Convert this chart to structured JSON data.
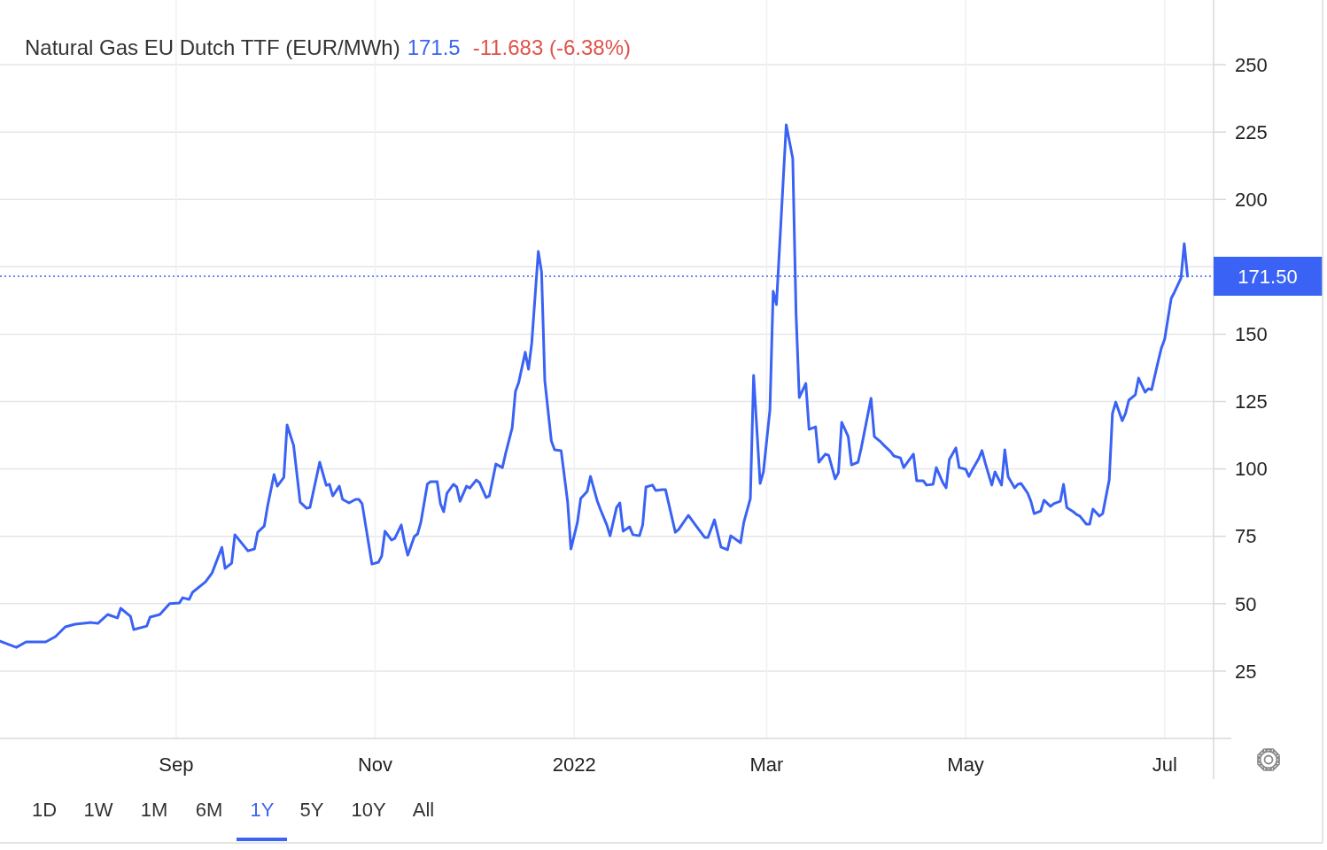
{
  "chart_data": {
    "type": "line",
    "title": "Natural Gas EU Dutch TTF (EUR/MWh)",
    "annotations": [
      "171.5",
      "-11.683 (-6.38%)",
      "1D",
      "1W",
      "1M",
      "6M",
      "1Y",
      "5Y",
      "10Y",
      "All"
    ],
    "x": [
      "2021-07-09",
      "2021-07-14",
      "2021-07-17",
      "2021-07-23",
      "2021-07-26",
      "2021-07-29",
      "2021-08-01",
      "2021-08-06",
      "2021-08-08",
      "2021-08-11",
      "2021-08-14",
      "2021-08-15",
      "2021-08-18",
      "2021-08-19",
      "2021-08-23",
      "2021-08-24",
      "2021-08-27",
      "2021-08-30",
      "2021-09-02",
      "2021-09-03",
      "2021-09-05",
      "2021-09-06",
      "2021-09-10",
      "2021-09-12",
      "2021-09-15",
      "2021-09-16",
      "2021-09-18",
      "2021-09-19",
      "2021-09-23",
      "2021-09-25",
      "2021-09-26",
      "2021-09-28",
      "2021-09-29",
      "2021-10-01",
      "2021-10-02",
      "2021-10-04",
      "2021-10-05",
      "2021-10-07",
      "2021-10-09",
      "2021-10-11",
      "2021-10-12",
      "2021-10-15",
      "2021-10-17",
      "2021-10-18",
      "2021-10-19",
      "2021-10-21",
      "2021-10-22",
      "2021-10-24",
      "2021-10-26",
      "2021-10-27",
      "2021-10-28",
      "2021-10-31",
      "2021-11-02",
      "2021-11-03",
      "2021-11-04",
      "2021-11-06",
      "2021-11-07",
      "2021-11-09",
      "2021-11-10",
      "2021-11-11",
      "2021-11-13",
      "2021-11-14",
      "2021-11-15",
      "2021-11-17",
      "2021-11-18",
      "2021-11-20",
      "2021-11-21",
      "2021-11-22",
      "2021-11-23",
      "2021-11-25",
      "2021-11-26",
      "2021-11-27",
      "2021-11-29",
      "2021-11-30",
      "2021-12-02",
      "2021-12-03",
      "2021-12-05",
      "2021-12-06",
      "2021-12-08",
      "2021-12-10",
      "2021-12-11",
      "2021-12-13",
      "2021-12-14",
      "2021-12-15",
      "2021-12-17",
      "2021-12-18",
      "2021-12-19",
      "2021-12-21",
      "2021-12-22",
      "2021-12-23",
      "2021-12-25",
      "2021-12-26",
      "2021-12-28",
      "2021-12-30",
      "2021-12-31",
      "2022-01-02",
      "2022-01-03",
      "2022-01-05",
      "2022-01-06",
      "2022-01-08",
      "2022-01-09",
      "2022-01-11",
      "2022-01-12",
      "2022-01-14",
      "2022-01-15",
      "2022-01-16",
      "2022-01-18",
      "2022-01-19",
      "2022-01-21",
      "2022-01-22",
      "2022-01-23",
      "2022-01-25",
      "2022-01-26",
      "2022-01-28",
      "2022-01-29",
      "2022-02-01",
      "2022-02-02",
      "2022-02-05",
      "2022-02-07",
      "2022-02-10",
      "2022-02-11",
      "2022-02-13",
      "2022-02-15",
      "2022-02-17",
      "2022-02-18",
      "2022-02-21",
      "2022-02-22",
      "2022-02-24",
      "2022-02-25",
      "2022-02-27",
      "2022-02-28",
      "2022-03-02",
      "2022-03-03",
      "2022-03-04",
      "2022-03-07",
      "2022-03-09",
      "2022-03-10",
      "2022-03-11",
      "2022-03-13",
      "2022-03-14",
      "2022-03-16",
      "2022-03-17",
      "2022-03-19",
      "2022-03-20",
      "2022-03-22",
      "2022-03-23",
      "2022-03-24",
      "2022-03-26",
      "2022-03-27",
      "2022-03-29",
      "2022-03-30",
      "2022-04-02",
      "2022-04-03",
      "2022-04-05",
      "2022-04-06",
      "2022-04-08",
      "2022-04-09",
      "2022-04-11",
      "2022-04-12",
      "2022-04-13",
      "2022-04-15",
      "2022-04-16",
      "2022-04-18",
      "2022-04-19",
      "2022-04-21",
      "2022-04-22",
      "2022-04-24",
      "2022-04-25",
      "2022-04-26",
      "2022-04-28",
      "2022-04-29",
      "2022-05-01",
      "2022-05-02",
      "2022-05-03",
      "2022-05-05",
      "2022-05-06",
      "2022-05-07",
      "2022-05-09",
      "2022-05-10",
      "2022-05-12",
      "2022-05-13",
      "2022-05-14",
      "2022-05-16",
      "2022-05-17",
      "2022-05-18",
      "2022-05-20",
      "2022-05-21",
      "2022-05-22",
      "2022-05-24",
      "2022-05-25",
      "2022-05-27",
      "2022-05-28",
      "2022-05-30",
      "2022-05-31",
      "2022-06-01",
      "2022-06-03",
      "2022-06-04",
      "2022-06-05",
      "2022-06-07",
      "2022-06-08",
      "2022-06-09",
      "2022-06-11",
      "2022-06-12",
      "2022-06-14",
      "2022-06-15",
      "2022-06-16",
      "2022-06-18",
      "2022-06-19",
      "2022-06-20",
      "2022-06-22",
      "2022-06-23",
      "2022-06-25",
      "2022-06-26",
      "2022-06-27",
      "2022-06-29",
      "2022-06-30",
      "2022-07-01",
      "2022-07-03",
      "2022-07-04",
      "2022-07-06",
      "2022-07-07",
      "2022-07-08"
    ],
    "series": [
      {
        "color": "#3a62f4",
        "values": [
          36.1,
          33.8,
          35.8,
          35.8,
          37.8,
          41.4,
          42.4,
          43.0,
          42.7,
          46.0,
          44.7,
          48.3,
          45.3,
          40.4,
          41.7,
          45.0,
          46.0,
          50.0,
          50.3,
          52.2,
          51.6,
          54.2,
          58.1,
          61.4,
          70.9,
          63.1,
          65.0,
          75.6,
          69.6,
          70.3,
          76.5,
          78.8,
          86.1,
          97.9,
          93.6,
          96.9,
          116.3,
          108.7,
          87.7,
          85.4,
          85.7,
          102.5,
          93.9,
          94.3,
          90.0,
          93.6,
          88.7,
          87.4,
          88.7,
          88.7,
          87.1,
          64.7,
          65.4,
          67.7,
          76.9,
          73.6,
          74.2,
          79.2,
          72.9,
          68.0,
          74.9,
          75.9,
          80.2,
          94.4,
          95.3,
          95.3,
          87.1,
          84.1,
          91.0,
          94.3,
          93.3,
          88.0,
          93.6,
          92.9,
          95.9,
          94.9,
          89.4,
          90.0,
          101.8,
          100.5,
          105.8,
          115.3,
          128.8,
          132.1,
          143.3,
          137.0,
          146.8,
          180.7,
          173.1,
          132.7,
          110.4,
          107.1,
          106.8,
          87.7,
          70.3,
          80.2,
          89.0,
          91.7,
          97.2,
          88.4,
          85.1,
          79.2,
          75.2,
          85.7,
          87.4,
          76.9,
          78.5,
          75.6,
          75.2,
          79.2,
          93.3,
          94.0,
          92.0,
          92.3,
          92.3,
          76.5,
          77.5,
          82.8,
          79.5,
          74.6,
          74.6,
          81.1,
          71.0,
          70.0,
          75.2,
          72.6,
          80.2,
          89.0,
          134.7,
          94.6,
          98.9,
          121.9,
          165.9,
          161.0,
          227.7,
          215.2,
          158.0,
          126.5,
          131.7,
          114.7,
          115.6,
          102.5,
          105.5,
          105.1,
          96.3,
          98.6,
          117.3,
          112.0,
          101.5,
          102.5,
          107.8,
          126.2,
          112.0,
          110.0,
          108.7,
          106.4,
          104.8,
          104.1,
          100.5,
          102.2,
          105.5,
          95.6,
          95.6,
          94.0,
          94.3,
          100.5,
          94.9,
          93.0,
          103.5,
          107.8,
          100.5,
          99.9,
          97.2,
          99.6,
          103.8,
          106.8,
          102.2,
          94.0,
          98.9,
          94.0,
          107.1,
          97.2,
          93.0,
          94.3,
          94.6,
          91.0,
          88.0,
          83.4,
          84.4,
          88.4,
          86.1,
          87.1,
          88.0,
          94.3,
          85.7,
          84.1,
          83.1,
          82.5,
          79.5,
          79.5,
          85.1,
          82.5,
          83.4,
          95.9,
          120.6,
          124.8,
          117.9,
          120.6,
          125.5,
          127.5,
          133.7,
          128.5,
          129.8,
          129.4,
          139.9,
          144.9,
          148.2,
          163.3,
          165.6,
          170.8,
          183.6,
          171.5
        ]
      }
    ],
    "xlim": [
      "2021-07-09",
      "2022-07-16"
    ],
    "xticks": [
      {
        "value": "2021-09-01",
        "label": "Sep"
      },
      {
        "value": "2021-11-01",
        "label": "Nov"
      },
      {
        "value": "2022-01-01",
        "label": "2022"
      },
      {
        "value": "2022-03-01",
        "label": "Mar"
      },
      {
        "value": "2022-05-01",
        "label": "May"
      },
      {
        "value": "2022-07-01",
        "label": "Jul"
      }
    ],
    "ylim": [
      0,
      274
    ],
    "yticks": [
      25,
      50,
      75,
      100,
      125,
      150,
      {
        "value": 175,
        "label": null
      },
      200,
      225,
      250
    ],
    "ref_lines": [
      {
        "axis": "y",
        "value": 171.5,
        "label": "171.50",
        "color": "#3a62f4",
        "line_style": "dotted"
      }
    ],
    "grid": true
  }
}
